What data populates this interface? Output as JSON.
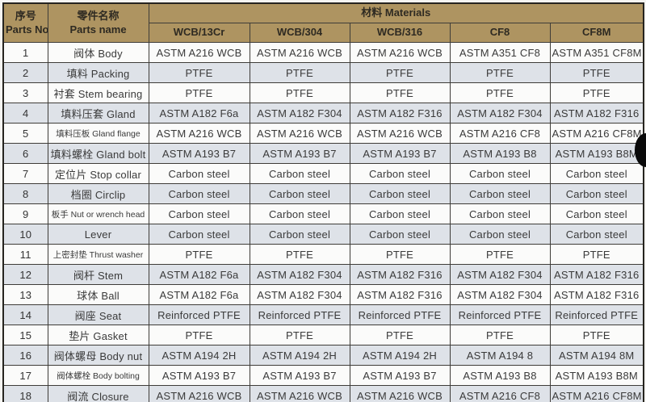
{
  "table": {
    "header": {
      "parts_no_zh": "序号",
      "parts_no_en": "Parts No.",
      "parts_name_zh": "零件名称",
      "parts_name_en": "Parts name",
      "materials_group": "材料 Materials",
      "material_columns": [
        "WCB/13Cr",
        "WCB/304",
        "WCB/316",
        "CF8",
        "CF8M"
      ]
    },
    "rows": [
      {
        "no": "1",
        "name": "阀体 Body",
        "materials": [
          "ASTM A216 WCB",
          "ASTM A216 WCB",
          "ASTM A216 WCB",
          "ASTM A351 CF8",
          "ASTM A351 CF8M"
        ]
      },
      {
        "no": "2",
        "name": "填料 Packing",
        "materials": [
          "PTFE",
          "PTFE",
          "PTFE",
          "PTFE",
          "PTFE"
        ]
      },
      {
        "no": "3",
        "name": "衬套 Stem bearing",
        "materials": [
          "PTFE",
          "PTFE",
          "PTFE",
          "PTFE",
          "PTFE"
        ]
      },
      {
        "no": "4",
        "name": "填料压套 Gland",
        "materials": [
          "ASTM A182 F6a",
          "ASTM A182 F304",
          "ASTM A182 F316",
          "ASTM A182 F304",
          "ASTM A182 F316"
        ]
      },
      {
        "no": "5",
        "name": "填料压板 Gland flange",
        "materials": [
          "ASTM A216 WCB",
          "ASTM A216 WCB",
          "ASTM A216 WCB",
          "ASTM A216 CF8",
          "ASTM A216 CF8M"
        ]
      },
      {
        "no": "6",
        "name": "填料螺栓 Gland bolt",
        "materials": [
          "ASTM A193 B7",
          "ASTM A193 B7",
          "ASTM A193 B7",
          "ASTM A193 B8",
          "ASTM A193 B8M"
        ]
      },
      {
        "no": "7",
        "name": "定位片 Stop collar",
        "materials": [
          "Carbon steel",
          "Carbon steel",
          "Carbon steel",
          "Carbon steel",
          "Carbon steel"
        ]
      },
      {
        "no": "8",
        "name": "档圈 Circlip",
        "materials": [
          "Carbon steel",
          "Carbon steel",
          "Carbon steel",
          "Carbon steel",
          "Carbon steel"
        ]
      },
      {
        "no": "9",
        "name": "板手 Nut or wrench head",
        "materials": [
          "Carbon steel",
          "Carbon steel",
          "Carbon steel",
          "Carbon steel",
          "Carbon steel"
        ]
      },
      {
        "no": "10",
        "name": "Lever",
        "materials": [
          "Carbon steel",
          "Carbon steel",
          "Carbon steel",
          "Carbon steel",
          "Carbon steel"
        ]
      },
      {
        "no": "11",
        "name": "上密封垫 Thrust washer",
        "materials": [
          "PTFE",
          "PTFE",
          "PTFE",
          "PTFE",
          "PTFE"
        ]
      },
      {
        "no": "12",
        "name": "阀杆 Stem",
        "materials": [
          "ASTM A182 F6a",
          "ASTM A182 F304",
          "ASTM A182 F316",
          "ASTM A182 F304",
          "ASTM A182 F316"
        ]
      },
      {
        "no": "13",
        "name": "球体 Ball",
        "materials": [
          "ASTM A182 F6a",
          "ASTM A182 F304",
          "ASTM A182 F316",
          "ASTM A182 F304",
          "ASTM A182 F316"
        ]
      },
      {
        "no": "14",
        "name": "阀座 Seat",
        "materials": [
          "Reinforced PTFE",
          "Reinforced PTFE",
          "Reinforced PTFE",
          "Reinforced PTFE",
          "Reinforced PTFE"
        ]
      },
      {
        "no": "15",
        "name": "垫片 Gasket",
        "materials": [
          "PTFE",
          "PTFE",
          "PTFE",
          "PTFE",
          "PTFE"
        ]
      },
      {
        "no": "16",
        "name": "阀体螺母 Body nut",
        "materials": [
          "ASTM A194 2H",
          "ASTM A194 2H",
          "ASTM A194 2H",
          "ASTM A194 8",
          "ASTM A194 8M"
        ]
      },
      {
        "no": "17",
        "name": "阀体螺栓 Body bolting",
        "materials": [
          "ASTM A193 B7",
          "ASTM A193 B7",
          "ASTM A193 B7",
          "ASTM A193 B8",
          "ASTM A193 B8M"
        ]
      },
      {
        "no": "18",
        "name": "阀流 Closure",
        "materials": [
          "ASTM A216 WCB",
          "ASTM A216 WCB",
          "ASTM A216 WCB",
          "ASTM A216 CF8",
          "ASTM A216 CF8M"
        ]
      }
    ]
  },
  "colors": {
    "header_bg": "#ae9461",
    "alt_row_bg": "#dee2e8",
    "row_bg": "#fbfbfa",
    "border": "#3e3c38",
    "text": "#3a3a3a"
  }
}
